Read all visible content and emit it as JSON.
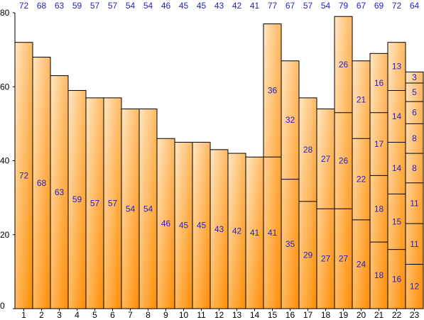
{
  "chart_data": {
    "type": "bar",
    "stacked": true,
    "categories": [
      "1",
      "2",
      "3",
      "4",
      "5",
      "6",
      "7",
      "8",
      "9",
      "10",
      "11",
      "12",
      "13",
      "14",
      "15",
      "16",
      "17",
      "18",
      "19",
      "20",
      "21",
      "22",
      "23"
    ],
    "totals": [
      72,
      68,
      63,
      59,
      57,
      57,
      54,
      54,
      46,
      45,
      45,
      43,
      42,
      41,
      77,
      67,
      57,
      54,
      79,
      67,
      69,
      72,
      64
    ],
    "segments": [
      [
        72
      ],
      [
        68
      ],
      [
        63
      ],
      [
        59
      ],
      [
        57
      ],
      [
        57
      ],
      [
        54
      ],
      [
        54
      ],
      [
        46
      ],
      [
        45
      ],
      [
        45
      ],
      [
        43
      ],
      [
        42
      ],
      [
        41
      ],
      [
        41,
        36
      ],
      [
        35,
        32
      ],
      [
        29,
        28
      ],
      [
        27,
        27
      ],
      [
        27,
        26,
        26
      ],
      [
        24,
        22,
        21
      ],
      [
        18,
        18,
        17,
        16
      ],
      [
        16,
        15,
        14,
        14,
        13
      ],
      [
        12,
        11,
        11,
        8,
        8,
        6,
        5,
        3
      ]
    ],
    "yticks": [
      "0",
      "20",
      "40",
      "60",
      "80"
    ],
    "ylim": [
      0,
      80
    ],
    "grid": false,
    "colors": {
      "bar_light": "#ffe6c4",
      "bar_dark": "#ff8c00",
      "bar_stroke": "#000000",
      "label": "#2222cc"
    }
  }
}
